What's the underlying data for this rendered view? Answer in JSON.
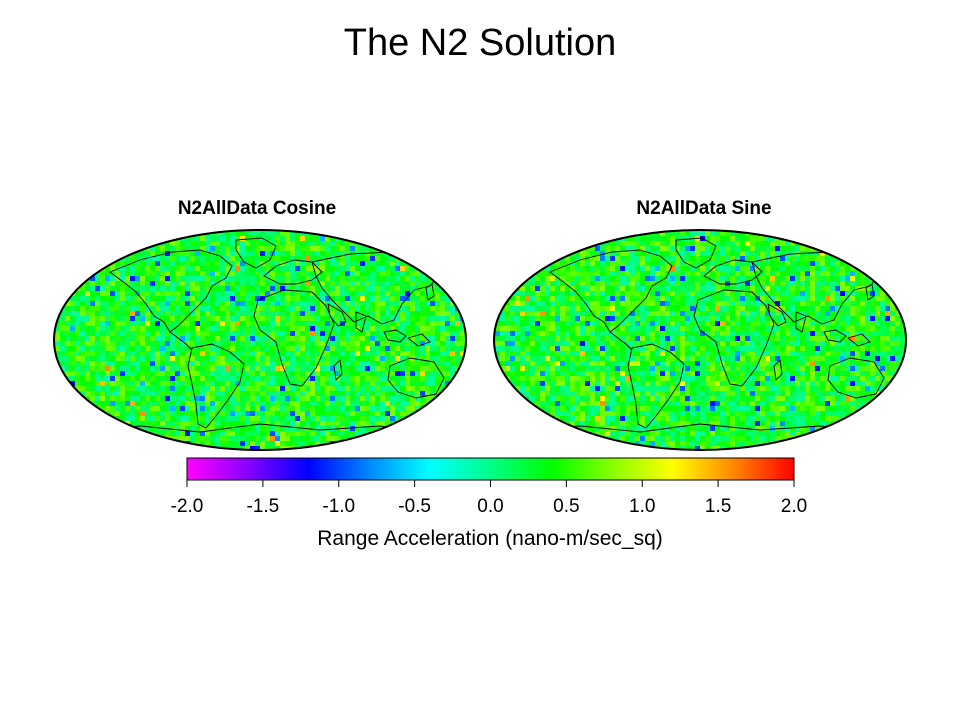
{
  "title": "The N2 Solution",
  "maps": [
    {
      "title": "N2AllData Cosine",
      "field": "cosine"
    },
    {
      "title": "N2AllData Sine",
      "field": "sine"
    }
  ],
  "colorbar": {
    "label": "Range Acceleration (nano-m/sec_sq)",
    "min": -2.0,
    "max": 2.0,
    "ticks": [
      "-2.0",
      "-1.5",
      "-1.0",
      "-0.5",
      "0.0",
      "0.5",
      "1.0",
      "1.5",
      "2.0"
    ],
    "colors": [
      "#ff00ff",
      "#8800ff",
      "#0000ff",
      "#0088ff",
      "#00ffff",
      "#00ff88",
      "#00ff00",
      "#88ff00",
      "#ffff00",
      "#ff8800",
      "#ff0000"
    ]
  },
  "colors": {
    "field_base": "#22ee66",
    "coastline": "#000000",
    "graticule": "#999999"
  }
}
